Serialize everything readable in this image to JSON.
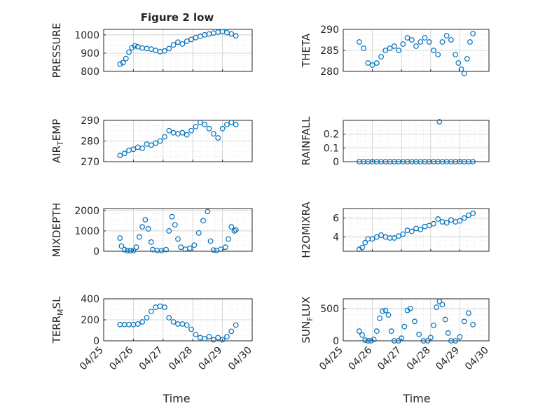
{
  "figure": {
    "title": "Figure 2 low",
    "xlabel": "Time",
    "marker_color": "#0072BD"
  },
  "chart_data": [
    {
      "type": "scatter",
      "id": "pressure",
      "ylabel": {
        "main": "PRESSURE",
        "sub": "",
        "rest": ""
      },
      "xlim": [
        0,
        5
      ],
      "ylim": [
        800,
        1030
      ],
      "yticks": [
        800,
        900,
        1000
      ],
      "x": [
        0.55,
        0.65,
        0.75,
        0.85,
        0.95,
        1.05,
        1.15,
        1.3,
        1.45,
        1.6,
        1.75,
        1.9,
        2.05,
        2.2,
        2.35,
        2.5,
        2.65,
        2.8,
        2.95,
        3.1,
        3.25,
        3.4,
        3.55,
        3.7,
        3.85,
        4.0,
        4.15,
        4.3,
        4.45
      ],
      "y": [
        840,
        848,
        870,
        905,
        930,
        940,
        935,
        928,
        925,
        922,
        915,
        908,
        912,
        925,
        945,
        960,
        950,
        965,
        975,
        985,
        992,
        1000,
        1005,
        1010,
        1015,
        1018,
        1012,
        1005,
        995
      ],
      "grid": true
    },
    {
      "type": "scatter",
      "id": "theta",
      "ylabel": {
        "main": "THETA",
        "sub": "",
        "rest": ""
      },
      "xlim": [
        0,
        5
      ],
      "ylim": [
        280,
        290
      ],
      "yticks": [
        280,
        285,
        290
      ],
      "x": [
        0.55,
        0.7,
        0.85,
        1.0,
        1.15,
        1.3,
        1.45,
        1.6,
        1.75,
        1.9,
        2.05,
        2.2,
        2.35,
        2.5,
        2.65,
        2.8,
        2.95,
        3.1,
        3.25,
        3.4,
        3.55,
        3.7,
        3.85,
        3.95,
        4.05,
        4.15,
        4.25,
        4.35,
        4.45
      ],
      "y": [
        287,
        285.5,
        282,
        281.5,
        282,
        283.5,
        285,
        285.5,
        286,
        285,
        286.5,
        288,
        287.5,
        286,
        287,
        288,
        287,
        285,
        284,
        287,
        288.5,
        287.5,
        284,
        282,
        280.5,
        279.5,
        283,
        287,
        289
      ],
      "grid": true
    },
    {
      "type": "scatter",
      "id": "air_temp",
      "ylabel": {
        "main": "AIR",
        "sub": "T",
        "rest": "EMP"
      },
      "xlim": [
        0,
        5
      ],
      "ylim": [
        270,
        290
      ],
      "yticks": [
        270,
        280,
        290
      ],
      "x": [
        0.55,
        0.7,
        0.85,
        1.0,
        1.15,
        1.3,
        1.45,
        1.6,
        1.75,
        1.9,
        2.05,
        2.2,
        2.35,
        2.5,
        2.65,
        2.8,
        2.95,
        3.1,
        3.25,
        3.4,
        3.55,
        3.7,
        3.85,
        4.0,
        4.15,
        4.3,
        4.45
      ],
      "y": [
        273,
        274,
        275.5,
        276,
        277,
        276.5,
        278.5,
        278,
        279,
        280,
        282,
        285,
        284,
        283.5,
        284,
        283,
        285,
        287,
        289,
        288,
        286,
        283.5,
        281.5,
        286,
        288,
        289,
        288
      ],
      "grid": true
    },
    {
      "type": "scatter",
      "id": "rainfall",
      "ylabel": {
        "main": "RAINFALL",
        "sub": "",
        "rest": ""
      },
      "xlim": [
        0,
        5
      ],
      "ylim": [
        0,
        0.3
      ],
      "yticks": [
        0,
        0.1,
        0.2
      ],
      "x": [
        0.55,
        0.7,
        0.85,
        1.0,
        1.15,
        1.3,
        1.45,
        1.6,
        1.75,
        1.9,
        2.05,
        2.2,
        2.35,
        2.5,
        2.65,
        2.8,
        2.95,
        3.1,
        3.25,
        3.4,
        3.55,
        3.7,
        3.85,
        4.0,
        4.15,
        4.3,
        4.45,
        3.3
      ],
      "y": [
        0,
        0,
        0,
        0,
        0,
        0,
        0,
        0,
        0,
        0,
        0,
        0,
        0,
        0,
        0,
        0,
        0,
        0,
        0,
        0,
        0,
        0,
        0,
        0,
        0,
        0,
        0,
        0.29
      ],
      "grid": true
    },
    {
      "type": "scatter",
      "id": "mixdepth",
      "ylabel": {
        "main": "MIXDEPTH",
        "sub": "",
        "rest": ""
      },
      "xlim": [
        0,
        5
      ],
      "ylim": [
        0,
        2100
      ],
      "yticks": [
        0,
        1000,
        2000
      ],
      "x": [
        0.55,
        0.6,
        0.7,
        0.8,
        0.9,
        1.0,
        1.1,
        1.2,
        1.3,
        1.4,
        1.5,
        1.6,
        1.65,
        1.8,
        1.95,
        2.1,
        2.2,
        2.3,
        2.4,
        2.5,
        2.6,
        2.75,
        2.9,
        3.05,
        3.2,
        3.35,
        3.5,
        3.6,
        3.7,
        3.8,
        3.95,
        4.1,
        4.2,
        4.3,
        4.4,
        4.45
      ],
      "y": [
        650,
        250,
        80,
        30,
        20,
        30,
        200,
        700,
        1200,
        1550,
        1100,
        450,
        80,
        40,
        30,
        80,
        1000,
        1700,
        1300,
        600,
        200,
        100,
        150,
        300,
        900,
        1500,
        1950,
        500,
        60,
        40,
        100,
        200,
        600,
        1200,
        1000,
        1050
      ],
      "grid": true
    },
    {
      "type": "scatter",
      "id": "h2o_mixra",
      "ylabel": {
        "main": "H2OMIXRA",
        "sub": "",
        "rest": ""
      },
      "xlim": [
        0,
        5
      ],
      "ylim": [
        2.5,
        7
      ],
      "yticks": [
        4,
        6
      ],
      "x": [
        0.55,
        0.65,
        0.75,
        0.85,
        1.0,
        1.15,
        1.3,
        1.45,
        1.6,
        1.75,
        1.9,
        2.05,
        2.2,
        2.35,
        2.5,
        2.65,
        2.8,
        2.95,
        3.1,
        3.25,
        3.4,
        3.55,
        3.7,
        3.85,
        4.0,
        4.15,
        4.3,
        4.45
      ],
      "y": [
        2.7,
        2.9,
        3.4,
        3.8,
        3.8,
        4.0,
        4.2,
        4.0,
        3.9,
        3.9,
        4.1,
        4.3,
        4.7,
        4.6,
        4.9,
        4.8,
        5.1,
        5.2,
        5.4,
        5.9,
        5.6,
        5.5,
        5.8,
        5.6,
        5.7,
        6.0,
        6.3,
        6.5
      ],
      "grid": true
    },
    {
      "type": "scatter",
      "id": "terr_msl",
      "ylabel": {
        "main": "TERR",
        "sub": "M",
        "rest": "SL"
      },
      "xlim": [
        0,
        5
      ],
      "ylim": [
        0,
        400
      ],
      "yticks": [
        0,
        200,
        400
      ],
      "x": [
        0.55,
        0.7,
        0.85,
        1.0,
        1.15,
        1.3,
        1.45,
        1.6,
        1.75,
        1.9,
        2.05,
        2.2,
        2.35,
        2.5,
        2.65,
        2.8,
        2.95,
        3.1,
        3.25,
        3.4,
        3.55,
        3.7,
        3.85,
        4.0,
        4.15,
        4.3,
        4.45
      ],
      "y": [
        155,
        155,
        155,
        155,
        160,
        180,
        220,
        280,
        320,
        330,
        320,
        220,
        180,
        160,
        160,
        150,
        110,
        60,
        30,
        20,
        40,
        10,
        30,
        10,
        40,
        90,
        150
      ],
      "grid": true
    },
    {
      "type": "scatter",
      "id": "sun_flux",
      "ylabel": {
        "main": "SUN",
        "sub": "F",
        "rest": "LUX"
      },
      "xlim": [
        0,
        5
      ],
      "ylim": [
        0,
        650
      ],
      "yticks": [
        0,
        500
      ],
      "x": [
        0.55,
        0.65,
        0.75,
        0.85,
        0.95,
        1.05,
        1.15,
        1.25,
        1.35,
        1.45,
        1.55,
        1.65,
        1.75,
        1.9,
        2.0,
        2.1,
        2.2,
        2.3,
        2.45,
        2.6,
        2.75,
        2.9,
        3.0,
        3.1,
        3.2,
        3.3,
        3.4,
        3.5,
        3.6,
        3.7,
        3.85,
        4.0,
        4.15,
        4.3,
        4.45
      ],
      "y": [
        150,
        90,
        10,
        0,
        0,
        20,
        150,
        350,
        460,
        470,
        400,
        150,
        0,
        0,
        40,
        220,
        470,
        500,
        300,
        100,
        0,
        0,
        50,
        240,
        520,
        610,
        560,
        330,
        120,
        0,
        0,
        60,
        300,
        430,
        250
      ],
      "grid": true
    }
  ],
  "xtick_labels": [
    "04/25",
    "04/26",
    "04/27",
    "04/28",
    "04/29",
    "04/30"
  ],
  "xtick_values": [
    0,
    1,
    2,
    3,
    4,
    5
  ]
}
